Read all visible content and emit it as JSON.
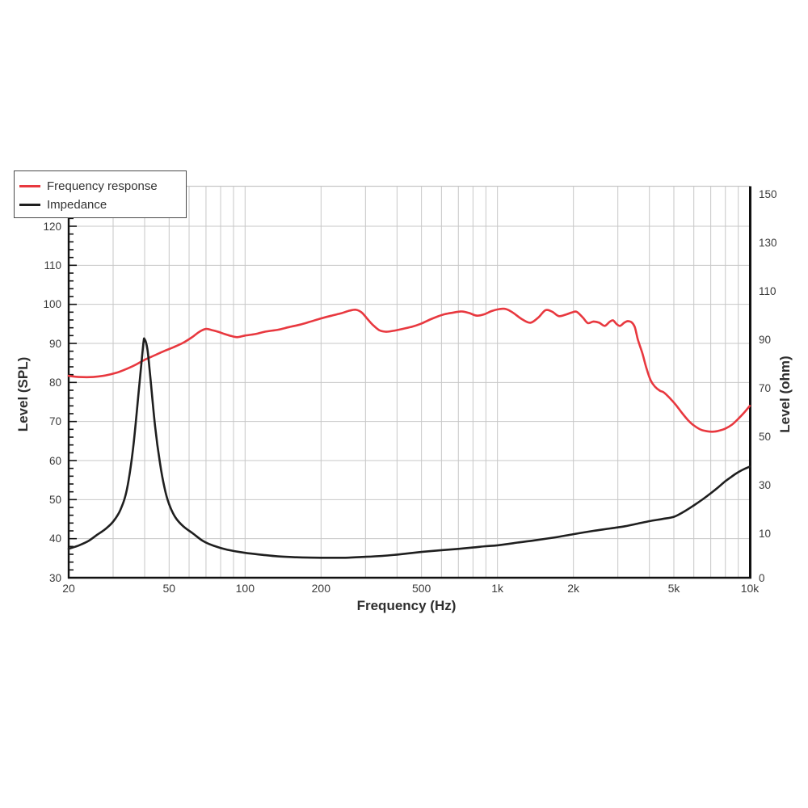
{
  "chart_data": {
    "type": "line",
    "title": "",
    "xlabel": "Frequency (Hz)",
    "ylabel_left": "Level (SPL)",
    "ylabel_right": "Level (ohm)",
    "x_scale": "log",
    "x_range": [
      20,
      10000
    ],
    "y_left_range": [
      30,
      120
    ],
    "y_left_tick_step": 10,
    "y_left_ticks": [
      "120",
      "110",
      "100",
      "90",
      "80",
      "70",
      "60",
      "50",
      "40",
      "30"
    ],
    "y_right_ticks": [
      "150",
      "130",
      "110",
      "90",
      "70",
      "50",
      "30",
      "10",
      "0"
    ],
    "x_ticks": [
      {
        "value": 20,
        "label": "20"
      },
      {
        "value": 50,
        "label": "50"
      },
      {
        "value": 100,
        "label": "100"
      },
      {
        "value": 200,
        "label": "200"
      },
      {
        "value": 500,
        "label": "500"
      },
      {
        "value": 1000,
        "label": "1k"
      },
      {
        "value": 2000,
        "label": "2k"
      },
      {
        "value": 5000,
        "label": "5k"
      },
      {
        "value": 10000,
        "label": "10k"
      }
    ],
    "grid": true,
    "legend_position": "top-left",
    "colors": {
      "frequency_response": "#e8383f",
      "impedance": "#1f1f1f",
      "grid": "#c7c7c7",
      "axis": "#111111",
      "label": "#3a3a3a"
    },
    "series": [
      {
        "name": "Frequency response",
        "axis": "left",
        "unit": "dB SPL",
        "color": "#e8383f",
        "points": [
          [
            20,
            81.7
          ],
          [
            22,
            81.4
          ],
          [
            25,
            81.4
          ],
          [
            28,
            81.8
          ],
          [
            31,
            82.5
          ],
          [
            34,
            83.5
          ],
          [
            37,
            84.6
          ],
          [
            40,
            85.8
          ],
          [
            44,
            87.0
          ],
          [
            48,
            88.1
          ],
          [
            52,
            89.0
          ],
          [
            57,
            90.2
          ],
          [
            62,
            91.7
          ],
          [
            66,
            93.0
          ],
          [
            70,
            93.7
          ],
          [
            74,
            93.4
          ],
          [
            78,
            93.0
          ],
          [
            83,
            92.4
          ],
          [
            88,
            91.9
          ],
          [
            93,
            91.6
          ],
          [
            100,
            92.0
          ],
          [
            110,
            92.4
          ],
          [
            120,
            93.0
          ],
          [
            135,
            93.5
          ],
          [
            150,
            94.2
          ],
          [
            165,
            94.8
          ],
          [
            180,
            95.5
          ],
          [
            200,
            96.4
          ],
          [
            220,
            97.1
          ],
          [
            240,
            97.7
          ],
          [
            260,
            98.4
          ],
          [
            275,
            98.6
          ],
          [
            290,
            97.9
          ],
          [
            305,
            96.3
          ],
          [
            320,
            94.8
          ],
          [
            340,
            93.4
          ],
          [
            360,
            93.0
          ],
          [
            385,
            93.2
          ],
          [
            420,
            93.7
          ],
          [
            460,
            94.3
          ],
          [
            500,
            95.1
          ],
          [
            540,
            96.1
          ],
          [
            580,
            96.9
          ],
          [
            620,
            97.5
          ],
          [
            670,
            97.9
          ],
          [
            720,
            98.2
          ],
          [
            770,
            97.8
          ],
          [
            830,
            97.1
          ],
          [
            890,
            97.5
          ],
          [
            950,
            98.3
          ],
          [
            1020,
            98.8
          ],
          [
            1080,
            98.8
          ],
          [
            1150,
            97.9
          ],
          [
            1250,
            96.2
          ],
          [
            1350,
            95.3
          ],
          [
            1450,
            96.6
          ],
          [
            1550,
            98.5
          ],
          [
            1650,
            98.1
          ],
          [
            1750,
            97.0
          ],
          [
            1870,
            97.4
          ],
          [
            1970,
            97.9
          ],
          [
            2060,
            98.1
          ],
          [
            2180,
            96.6
          ],
          [
            2280,
            95.2
          ],
          [
            2400,
            95.6
          ],
          [
            2530,
            95.3
          ],
          [
            2660,
            94.5
          ],
          [
            2780,
            95.5
          ],
          [
            2870,
            95.9
          ],
          [
            2960,
            95.0
          ],
          [
            3060,
            94.5
          ],
          [
            3180,
            95.3
          ],
          [
            3280,
            95.7
          ],
          [
            3400,
            95.4
          ],
          [
            3500,
            94.2
          ],
          [
            3600,
            91.0
          ],
          [
            3750,
            87.5
          ],
          [
            3900,
            83.5
          ],
          [
            4050,
            80.5
          ],
          [
            4200,
            79.0
          ],
          [
            4400,
            77.9
          ],
          [
            4550,
            77.5
          ],
          [
            4700,
            76.7
          ],
          [
            4900,
            75.5
          ],
          [
            5100,
            74.2
          ],
          [
            5400,
            72.1
          ],
          [
            5700,
            70.3
          ],
          [
            6000,
            69.0
          ],
          [
            6400,
            67.9
          ],
          [
            6800,
            67.5
          ],
          [
            7200,
            67.4
          ],
          [
            7600,
            67.7
          ],
          [
            8000,
            68.2
          ],
          [
            8500,
            69.2
          ],
          [
            9000,
            70.7
          ],
          [
            9500,
            72.3
          ],
          [
            10000,
            74.0
          ]
        ]
      },
      {
        "name": "Impedance",
        "axis": "right",
        "unit": "ohm",
        "color": "#1f1f1f",
        "points": [
          [
            20,
            6.5
          ],
          [
            22,
            7.3
          ],
          [
            24,
            8.3
          ],
          [
            26,
            9.7
          ],
          [
            28,
            11.8
          ],
          [
            30,
            14.8
          ],
          [
            32,
            19.5
          ],
          [
            34,
            28
          ],
          [
            36,
            45
          ],
          [
            38,
            70
          ],
          [
            39.5,
            88
          ],
          [
            40,
            90
          ],
          [
            41,
            86
          ],
          [
            42,
            76
          ],
          [
            44,
            54
          ],
          [
            46,
            39
          ],
          [
            48,
            28.5
          ],
          [
            50,
            22
          ],
          [
            53,
            16.5
          ],
          [
            57,
            12.8
          ],
          [
            62,
            10.0
          ],
          [
            68,
            8.3
          ],
          [
            75,
            7.2
          ],
          [
            85,
            6.3
          ],
          [
            100,
            5.6
          ],
          [
            115,
            5.2
          ],
          [
            135,
            4.8
          ],
          [
            160,
            4.6
          ],
          [
            200,
            4.5
          ],
          [
            250,
            4.5
          ],
          [
            300,
            4.7
          ],
          [
            350,
            4.9
          ],
          [
            400,
            5.2
          ],
          [
            500,
            5.8
          ],
          [
            600,
            6.2
          ],
          [
            700,
            6.5
          ],
          [
            800,
            6.8
          ],
          [
            900,
            7.1
          ],
          [
            1000,
            7.3
          ],
          [
            1200,
            7.9
          ],
          [
            1400,
            8.4
          ],
          [
            1700,
            9.1
          ],
          [
            2000,
            9.8
          ],
          [
            2400,
            11.0
          ],
          [
            2800,
            12.0
          ],
          [
            3200,
            12.9
          ],
          [
            3600,
            14.0
          ],
          [
            4000,
            15.0
          ],
          [
            4500,
            15.9
          ],
          [
            5000,
            16.8
          ],
          [
            5500,
            19.0
          ],
          [
            6000,
            21.5
          ],
          [
            6500,
            24.0
          ],
          [
            7000,
            26.5
          ],
          [
            7500,
            29.0
          ],
          [
            8000,
            31.5
          ],
          [
            8500,
            33.5
          ],
          [
            9000,
            35.2
          ],
          [
            9500,
            36.5
          ],
          [
            10000,
            37.5
          ]
        ]
      }
    ]
  }
}
